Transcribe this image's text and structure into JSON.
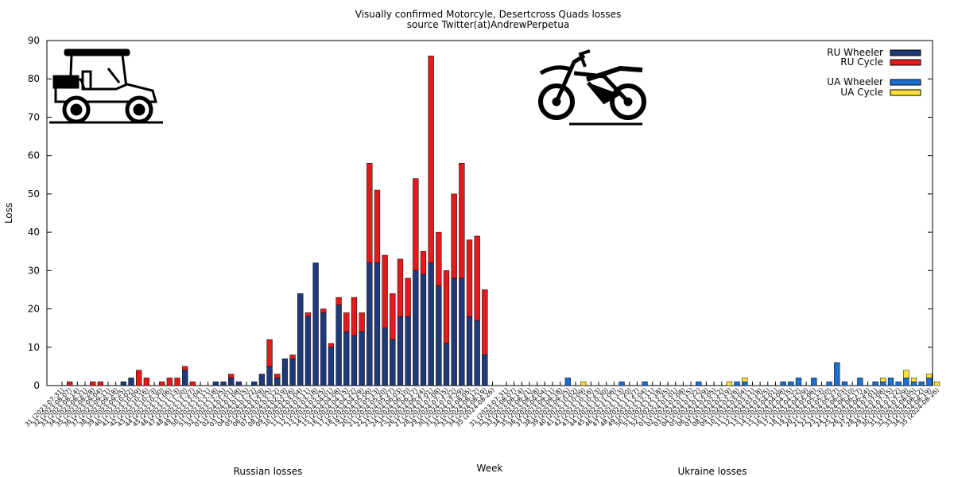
{
  "chart_data": {
    "type": "bar",
    "stacked": true,
    "title": "Visually confirmed Motorcyle, Desertcross  Quads losses",
    "subtitle": "source Twitter(at)AndrewPerpetua",
    "xlabel": "Week",
    "ylabel": "Loss",
    "ylim": [
      0,
      90
    ],
    "yticks": [
      0,
      10,
      20,
      30,
      40,
      50,
      60,
      70,
      80,
      90
    ],
    "grid": false,
    "legend": "top-right",
    "colors": {
      "ru_wheeler": "#1f3a7a",
      "ru_cycle": "#e31a1c",
      "ua_wheeler": "#1a6fd1",
      "ua_cycle": "#ffe135"
    },
    "legend_entries": [
      {
        "name": "RU Wheeler",
        "key": "ru_wheeler"
      },
      {
        "name": "RU Cycle",
        "key": "ru_cycle"
      },
      {
        "name": "UA Wheeler",
        "key": "ua_wheeler"
      },
      {
        "name": "UA Cycle",
        "key": "ua_cycle"
      }
    ],
    "categories": [
      "31 (2023-07-31)",
      "32 (2023-08-07)",
      "33 (2023-08-14)",
      "34 (2023-08-21)",
      "35 (2023-08-28)",
      "36 (2023-09-04)",
      "37 (2023-09-11)",
      "38 (2023-09-18)",
      "39 (2023-09-25)",
      "40 (2023-10-02)",
      "41 (2023-10-09)",
      "42 (2023-10-16)",
      "43 (2023-10-23)",
      "44 (2023-10-30)",
      "45 (2023-11-06)",
      "46 (2023-11-13)",
      "47 (2023-11-20)",
      "48 (2023-11-27)",
      "49 (2023-12-04)",
      "50 (2023-12-11)",
      "51 (2023-12-18)",
      "52 (2023-12-25)",
      "01 (2024-01-01)",
      "02 (2024-01-08)",
      "03 (2024-01-15)",
      "04 (2024-01-22)",
      "05 (2024-01-29)",
      "06 (2024-02-05)",
      "07 (2024-02-12)",
      "08 (2024-02-19)",
      "09 (2024-02-26)",
      "10 (2024-03-04)",
      "11 (2024-03-11)",
      "12 (2024-03-18)",
      "13 (2024-03-25)",
      "14 (2024-04-01)",
      "15 (2024-04-08)",
      "16 (2024-04-15)",
      "17 (2024-04-22)",
      "18 (2024-04-29)",
      "19 (2024-05-06)",
      "20 (2024-05-13)",
      "21 (2024-05-20)",
      "22 (2024-05-27)",
      "23 (2024-06-03)",
      "24 (2024-06-10)",
      "25 (2024-06-17)",
      "26 (2024-06-24)",
      "27 (2024-07-01)",
      "28 (2024-07-08)",
      "29 (2024-07-15)",
      "30 (2024-07-22)",
      "31 (2024-07-29)",
      "32 (2024-08-05)",
      "33 (2024-08-12)",
      "34 (2024-08-19)",
      "35 (2024-08-26)"
    ],
    "groups": [
      {
        "label": "Russian losses",
        "series": [
          {
            "name": "RU Wheeler",
            "key": "ru_wheeler",
            "values": [
              0,
              0,
              0,
              0,
              0,
              0,
              0,
              0,
              1,
              2,
              0,
              0,
              0,
              0,
              0,
              0,
              4,
              0,
              0,
              0,
              1,
              1,
              2,
              1,
              0,
              1,
              3,
              5,
              2,
              7,
              7,
              24,
              18,
              32,
              19,
              10,
              21,
              14,
              13,
              14,
              32,
              32,
              15,
              12,
              18,
              18,
              30,
              29,
              32,
              26,
              11,
              28,
              28,
              18,
              17,
              8,
              0
            ]
          },
          {
            "name": "RU Cycle",
            "key": "ru_cycle",
            "values": [
              0,
              1,
              0,
              0,
              1,
              1,
              0,
              0,
              0,
              0,
              4,
              2,
              0,
              1,
              2,
              2,
              1,
              1,
              0,
              0,
              0,
              0,
              1,
              0,
              0,
              0,
              0,
              7,
              1,
              0,
              1,
              0,
              1,
              0,
              1,
              1,
              2,
              5,
              10,
              5,
              26,
              19,
              19,
              12,
              15,
              10,
              24,
              6,
              54,
              14,
              19,
              22,
              30,
              20,
              22,
              17,
              0
            ]
          }
        ]
      },
      {
        "label": "Ukraine losses",
        "series": [
          {
            "name": "UA Wheeler",
            "key": "ua_wheeler",
            "values": [
              0,
              0,
              0,
              0,
              0,
              0,
              0,
              0,
              2,
              0,
              0,
              0,
              0,
              0,
              0,
              1,
              0,
              0,
              1,
              0,
              0,
              0,
              0,
              0,
              0,
              1,
              0,
              0,
              0,
              0,
              1,
              1,
              0,
              0,
              0,
              0,
              1,
              1,
              2,
              0,
              2,
              0,
              1,
              6,
              1,
              0,
              2,
              0,
              1,
              1,
              2,
              1,
              2,
              1,
              1,
              2,
              0
            ]
          },
          {
            "name": "UA Cycle",
            "key": "ua_cycle",
            "values": [
              0,
              0,
              0,
              0,
              0,
              0,
              0,
              0,
              0,
              0,
              1,
              0,
              0,
              0,
              0,
              0,
              0,
              0,
              0,
              0,
              0,
              0,
              0,
              0,
              0,
              0,
              0,
              0,
              0,
              1,
              0,
              1,
              0,
              0,
              0,
              0,
              0,
              0,
              0,
              0,
              0,
              0,
              0,
              0,
              0,
              0,
              0,
              0,
              0,
              1,
              0,
              0,
              2,
              1,
              0,
              1,
              1
            ]
          }
        ]
      }
    ]
  },
  "icons": {
    "left": "quad-buggy-icon",
    "right": "dirt-bike-icon"
  }
}
